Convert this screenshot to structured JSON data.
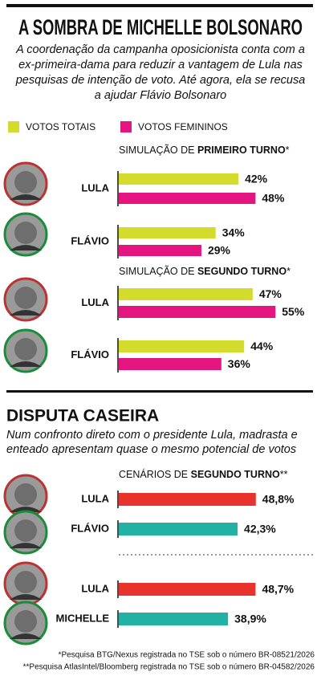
{
  "title": "A SOMBRA DE MICHELLE BOLSONARO",
  "subtitle": [
    "A coordenação da campanha oposicionista conta com a",
    "ex-primeira-dama para reduzir a vantagem de Lula nas",
    "pesquisas de intenção de voto. Até agora, ela se recusa",
    "a ajudar Flávio Bolsonaro"
  ],
  "section_title": "DISPUTA CASEIRA",
  "section_subtitle": [
    "Num confronto direto com o presidente Lula, madrasta e",
    "enteado apresentam quase o mesmo potencial de votos"
  ],
  "footnotes": [
    "*Pesquisa BTG/Nexus registrada no TSE sob o número BR-08521/2026",
    "**Pesquisa AtlasIntel/Bloomberg registrada no TSE sob o número BR-04582/2026"
  ],
  "chart_data": [
    {
      "type": "bar",
      "title": [
        "SIMULAÇÃO DE ",
        "PRIMEIRO TURNO",
        "*"
      ],
      "categories": [
        "LULA",
        "FLÁVIO"
      ],
      "series": [
        {
          "name": "VOTOS TOTAIS",
          "color": "#d3dc2c",
          "values": [
            42,
            34
          ],
          "value_labels": [
            "42%",
            "34%"
          ]
        },
        {
          "name": "VOTOS FEMININOS",
          "color": "#e4157f",
          "values": [
            48,
            29
          ],
          "value_labels": [
            "48%",
            "29%"
          ]
        }
      ]
    },
    {
      "type": "bar",
      "title": [
        "SIMULAÇÃO DE ",
        "SEGUNDO TURNO",
        "*"
      ],
      "categories": [
        "LULA",
        "FLÁVIO"
      ],
      "series": [
        {
          "color": "#d3dc2c",
          "values": [
            47,
            44
          ],
          "value_labels": [
            "47%",
            "44%"
          ]
        },
        {
          "color": "#e4157f",
          "values": [
            55,
            36
          ],
          "value_labels": [
            "55%",
            "36%"
          ]
        }
      ]
    },
    {
      "type": "bar",
      "title": [
        "CENÁRIOS DE ",
        "SEGUNDO TURNO",
        "**"
      ],
      "categories": [
        "LULA",
        "FLÁVIO"
      ],
      "values": [
        48.8,
        42.3
      ],
      "value_labels": [
        "48,8%",
        "42,3%"
      ],
      "colors": [
        "#e8332d",
        "#22b2a4"
      ]
    },
    {
      "type": "bar",
      "categories": [
        "LULA",
        "MICHELLE"
      ],
      "values": [
        48.7,
        38.9
      ],
      "value_labels": [
        "48,7%",
        "38,9%"
      ],
      "colors": [
        "#e8332d",
        "#22b2a4"
      ]
    }
  ]
}
